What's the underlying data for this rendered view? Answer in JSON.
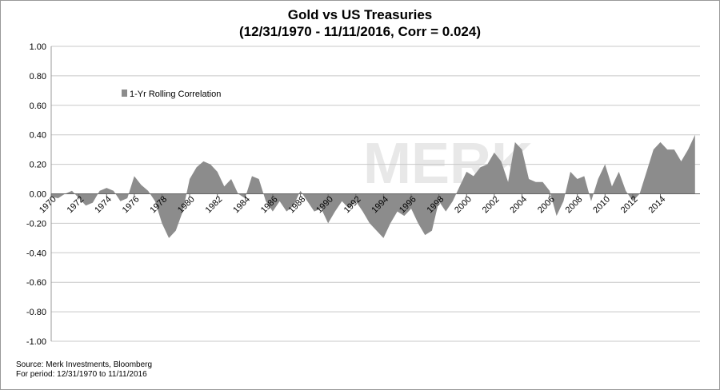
{
  "chart_data": {
    "type": "area",
    "title": "Gold vs US Treasuries",
    "subtitle": "(12/31/1970 - 11/11/2016, Corr = 0.024)",
    "watermark": "MERK",
    "source": "Source: Merk Investments, Bloomberg",
    "period": "For period: 12/31/1970 to 11/11/2016",
    "legend_position": "upper left",
    "grid": true,
    "xlim": [
      1970,
      2016.86
    ],
    "xticks": [
      1970,
      1972,
      1974,
      1976,
      1978,
      1980,
      1982,
      1984,
      1986,
      1988,
      1990,
      1992,
      1994,
      1996,
      1998,
      2000,
      2002,
      2004,
      2006,
      2008,
      2010,
      2012,
      2014
    ],
    "ylim": [
      -1,
      1
    ],
    "yticks": [
      {
        "value": -1,
        "label": "-1.00"
      },
      {
        "value": -0.8,
        "label": "-0.80"
      },
      {
        "value": -0.6,
        "label": "-0.60"
      },
      {
        "value": -0.4,
        "label": "-0.40"
      },
      {
        "value": -0.2,
        "label": "-0.20"
      },
      {
        "value": 0,
        "label": "0.00"
      },
      {
        "value": 0.2,
        "label": "0.20"
      },
      {
        "value": 0.4,
        "label": "0.40"
      },
      {
        "value": 0.6,
        "label": "0.60"
      },
      {
        "value": 0.8,
        "label": "0.80"
      },
      {
        "value": 1,
        "label": "1.00"
      }
    ],
    "x": [
      1970,
      1970.5,
      1971,
      1971.5,
      1972,
      1972.5,
      1973,
      1973.5,
      1974,
      1974.5,
      1975,
      1975.5,
      1976,
      1976.5,
      1977,
      1977.5,
      1978,
      1978.5,
      1979,
      1979.5,
      1980,
      1980.5,
      1981,
      1981.5,
      1982,
      1982.5,
      1983,
      1983.5,
      1984,
      1984.5,
      1985,
      1985.5,
      1986,
      1986.5,
      1987,
      1987.5,
      1988,
      1988.5,
      1989,
      1989.5,
      1990,
      1990.5,
      1991,
      1991.5,
      1992,
      1992.5,
      1993,
      1993.5,
      1994,
      1994.5,
      1995,
      1995.5,
      1996,
      1996.5,
      1997,
      1997.5,
      1998,
      1998.5,
      1999,
      1999.5,
      2000,
      2000.5,
      2001,
      2001.5,
      2002,
      2002.5,
      2003,
      2003.5,
      2004,
      2004.5,
      2005,
      2005.5,
      2006,
      2006.5,
      2007,
      2007.5,
      2008,
      2008.5,
      2009,
      2009.5,
      2010,
      2010.5,
      2011,
      2011.5,
      2012,
      2012.5,
      2013,
      2013.5,
      2014,
      2014.5,
      2015,
      2015.5,
      2016,
      2016.5
    ],
    "series": [
      {
        "name": "1-Yr Rolling Correlation",
        "color": "#8c8c8c",
        "values": [
          -0.02,
          -0.03,
          0.0,
          0.02,
          -0.03,
          -0.08,
          -0.06,
          0.02,
          0.04,
          0.02,
          -0.05,
          -0.03,
          0.12,
          0.06,
          0.02,
          -0.05,
          -0.2,
          -0.3,
          -0.25,
          -0.12,
          0.1,
          0.18,
          0.22,
          0.2,
          0.15,
          0.05,
          0.1,
          0.0,
          -0.03,
          0.12,
          0.1,
          -0.05,
          -0.12,
          -0.05,
          -0.12,
          -0.08,
          0.02,
          -0.05,
          -0.12,
          -0.1,
          -0.2,
          -0.12,
          -0.05,
          -0.1,
          -0.05,
          -0.12,
          -0.2,
          -0.25,
          -0.3,
          -0.2,
          -0.12,
          -0.15,
          -0.1,
          -0.2,
          -0.28,
          -0.25,
          -0.05,
          -0.12,
          -0.05,
          0.05,
          0.15,
          0.12,
          0.18,
          0.2,
          0.28,
          0.22,
          0.08,
          0.35,
          0.3,
          0.1,
          0.08,
          0.08,
          0.02,
          -0.15,
          -0.05,
          0.15,
          0.1,
          0.12,
          -0.05,
          0.1,
          0.2,
          0.05,
          0.15,
          0.02,
          -0.05,
          0.0,
          0.15,
          0.3,
          0.35,
          0.3,
          0.3,
          0.22,
          0.3,
          0.4
        ]
      }
    ]
  }
}
